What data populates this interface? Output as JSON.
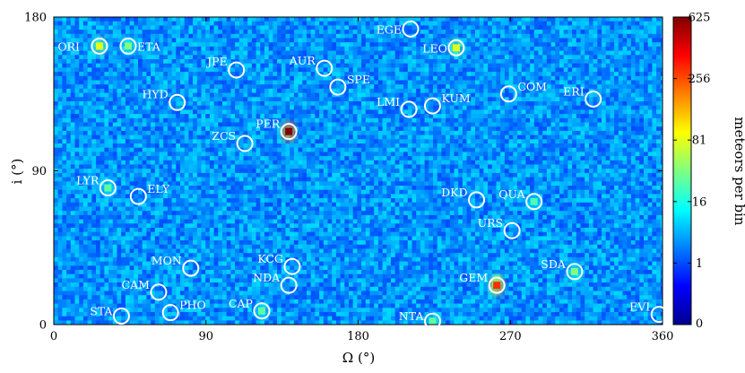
{
  "chart_data": {
    "type": "heatmap",
    "xlabel": "Ω (°)",
    "ylabel": "i (°)",
    "xlim": [
      0,
      360
    ],
    "ylim": [
      0,
      180
    ],
    "xticks": [
      "0",
      "90",
      "180",
      "270",
      "360"
    ],
    "yticks": [
      "0",
      "90",
      "180"
    ],
    "colorbar": {
      "label": "meteors per bin",
      "ticks": [
        "0",
        "1",
        "16",
        "81",
        "256",
        "625"
      ],
      "scale": "fourth-root"
    },
    "showers": [
      {
        "name": "ORI",
        "x": 27,
        "y": 163
      },
      {
        "name": "ETA",
        "x": 44,
        "y": 163
      },
      {
        "name": "JPE",
        "x": 108,
        "y": 149
      },
      {
        "name": "AUR",
        "x": 160,
        "y": 150
      },
      {
        "name": "EGE",
        "x": 211,
        "y": 173
      },
      {
        "name": "LEO",
        "x": 238,
        "y": 162
      },
      {
        "name": "HYD",
        "x": 73,
        "y": 130
      },
      {
        "name": "SPE",
        "x": 168,
        "y": 139
      },
      {
        "name": "COM",
        "x": 269,
        "y": 135
      },
      {
        "name": "ERI",
        "x": 319,
        "y": 132
      },
      {
        "name": "LMI",
        "x": 210,
        "y": 126
      },
      {
        "name": "KUM",
        "x": 224,
        "y": 128
      },
      {
        "name": "PER",
        "x": 139,
        "y": 113
      },
      {
        "name": "ZCS",
        "x": 113,
        "y": 106
      },
      {
        "name": "LYR",
        "x": 32,
        "y": 80
      },
      {
        "name": "ELY",
        "x": 50,
        "y": 75
      },
      {
        "name": "DKD",
        "x": 250,
        "y": 73
      },
      {
        "name": "QUA",
        "x": 284,
        "y": 72
      },
      {
        "name": "URS",
        "x": 271,
        "y": 55
      },
      {
        "name": "MON",
        "x": 81,
        "y": 33
      },
      {
        "name": "KCG",
        "x": 141,
        "y": 34
      },
      {
        "name": "NDA",
        "x": 139,
        "y": 23
      },
      {
        "name": "CAM",
        "x": 62,
        "y": 19
      },
      {
        "name": "GEM",
        "x": 262,
        "y": 23
      },
      {
        "name": "SDA",
        "x": 308,
        "y": 31
      },
      {
        "name": "STA",
        "x": 40,
        "y": 5
      },
      {
        "name": "PHO",
        "x": 69,
        "y": 7
      },
      {
        "name": "CAP",
        "x": 123,
        "y": 8
      },
      {
        "name": "NTA",
        "x": 224,
        "y": 2
      },
      {
        "name": "EVI",
        "x": 358,
        "y": 6
      }
    ],
    "hotspots": [
      {
        "x": 139,
        "y": 113,
        "count": 625
      },
      {
        "x": 262,
        "y": 23,
        "count": 300
      },
      {
        "x": 27,
        "y": 163,
        "count": 81
      },
      {
        "x": 238,
        "y": 162,
        "count": 81
      },
      {
        "x": 44,
        "y": 163,
        "count": 40
      },
      {
        "x": 308,
        "y": 31,
        "count": 40
      },
      {
        "x": 32,
        "y": 80,
        "count": 30
      },
      {
        "x": 284,
        "y": 72,
        "count": 25
      },
      {
        "x": 123,
        "y": 8,
        "count": 30
      },
      {
        "x": 224,
        "y": 2,
        "count": 30
      }
    ]
  }
}
